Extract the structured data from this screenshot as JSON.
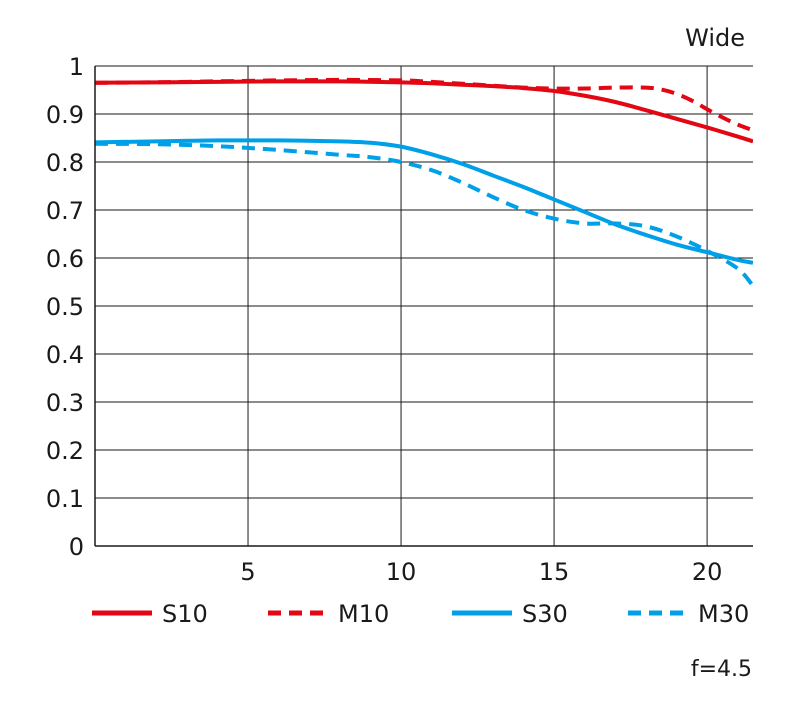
{
  "chart_data": {
    "type": "line",
    "title": "Wide",
    "note": "f=4.5",
    "xlabel": "",
    "ylabel": "",
    "xlim": [
      0,
      21.5
    ],
    "ylim": [
      0,
      1
    ],
    "grid": true,
    "legend_position": "bottom",
    "x_ticks": [
      5,
      10,
      15,
      20
    ],
    "x_tick_labels": [
      "5",
      "10",
      "15",
      "20"
    ],
    "y_ticks": [
      0,
      0.1,
      0.2,
      0.3,
      0.4,
      0.5,
      0.6,
      0.7,
      0.8,
      0.9,
      1
    ],
    "y_tick_labels": [
      "0",
      "0.1",
      "0.2",
      "0.3",
      "0.4",
      "0.5",
      "0.6",
      "0.7",
      "0.8",
      "0.9",
      "1"
    ],
    "series": [
      {
        "name": "S10",
        "color": "#e30613",
        "dash": "solid",
        "x": [
          0,
          2,
          4,
          6,
          8,
          10,
          11,
          12,
          13,
          14,
          15,
          16,
          17,
          18,
          19,
          20,
          21,
          21.5
        ],
        "y": [
          0.965,
          0.966,
          0.967,
          0.968,
          0.968,
          0.966,
          0.964,
          0.961,
          0.958,
          0.954,
          0.948,
          0.938,
          0.925,
          0.908,
          0.89,
          0.872,
          0.853,
          0.843
        ]
      },
      {
        "name": "M10",
        "color": "#e30613",
        "dash": "dashed",
        "x": [
          0,
          2,
          4,
          6,
          8,
          10,
          11,
          12,
          13,
          14,
          15,
          16,
          17,
          18,
          18.5,
          19,
          19.5,
          20,
          20.5,
          21,
          21.5
        ],
        "y": [
          0.965,
          0.966,
          0.968,
          0.97,
          0.971,
          0.97,
          0.967,
          0.963,
          0.959,
          0.955,
          0.953,
          0.953,
          0.955,
          0.955,
          0.951,
          0.942,
          0.928,
          0.91,
          0.893,
          0.878,
          0.866
        ]
      },
      {
        "name": "S30",
        "color": "#00a0e9",
        "dash": "solid",
        "x": [
          0,
          2,
          4,
          6,
          8,
          9,
          10,
          11,
          12,
          13,
          14,
          15,
          16,
          17,
          18,
          19,
          20,
          21,
          21.5
        ],
        "y": [
          0.841,
          0.843,
          0.845,
          0.845,
          0.843,
          0.84,
          0.832,
          0.816,
          0.796,
          0.772,
          0.748,
          0.722,
          0.696,
          0.67,
          0.648,
          0.628,
          0.612,
          0.596,
          0.59
        ]
      },
      {
        "name": "M30",
        "color": "#00a0e9",
        "dash": "dashed",
        "x": [
          0,
          2,
          4,
          6,
          8,
          9,
          10,
          11,
          12,
          13,
          14,
          15,
          16,
          17,
          18,
          19,
          20,
          21,
          21.5
        ],
        "y": [
          0.838,
          0.837,
          0.833,
          0.825,
          0.815,
          0.81,
          0.8,
          0.783,
          0.757,
          0.727,
          0.7,
          0.682,
          0.672,
          0.672,
          0.666,
          0.645,
          0.615,
          0.578,
          0.542
        ]
      }
    ]
  }
}
